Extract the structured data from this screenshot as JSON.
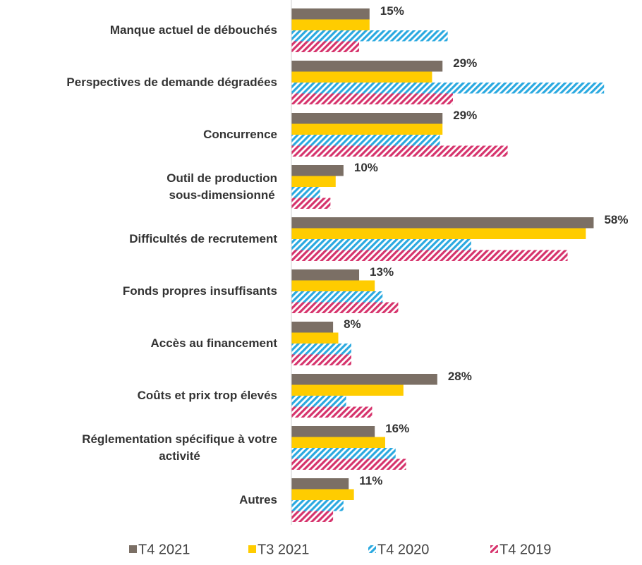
{
  "chart_data": {
    "type": "hbar",
    "categories": [
      "Manque actuel de débouchés",
      "Perspectives de demande dégradées",
      "Concurrence",
      "Outil de production\nsous-dimensionné",
      "Difficultés de recrutement",
      "Fonds propres insuffisants",
      "Accès au financement",
      "Coûts et prix trop élevés",
      "Réglementation spécifique à votre\nactivité",
      "Autres"
    ],
    "xlim": [
      0,
      62
    ],
    "series": [
      {
        "name": "T4 2021",
        "color": "#7b6f65",
        "hatch": false,
        "values": [
          15,
          29,
          29,
          10,
          58,
          13,
          8,
          28,
          16,
          11
        ],
        "value_labels": [
          "15%",
          "29%",
          "29%",
          "10%",
          "58%",
          "13%",
          "8%",
          "28%",
          "16%",
          "11%"
        ]
      },
      {
        "name": "T3 2021",
        "color": "#ffcc00",
        "hatch": false,
        "values": [
          15,
          27,
          29,
          8.5,
          56.5,
          16,
          9,
          21.5,
          18,
          12
        ]
      },
      {
        "name": "T4 2020",
        "color": "#2aa9e0",
        "hatch": true,
        "values": [
          30,
          60,
          28.5,
          5.5,
          34.5,
          17.5,
          11.5,
          10.5,
          20,
          10
        ]
      },
      {
        "name": "T4 2019",
        "color": "#d6336c",
        "hatch": true,
        "values": [
          13,
          31,
          41.5,
          7.5,
          53,
          20.5,
          11.5,
          15.5,
          22,
          8
        ]
      }
    ]
  }
}
